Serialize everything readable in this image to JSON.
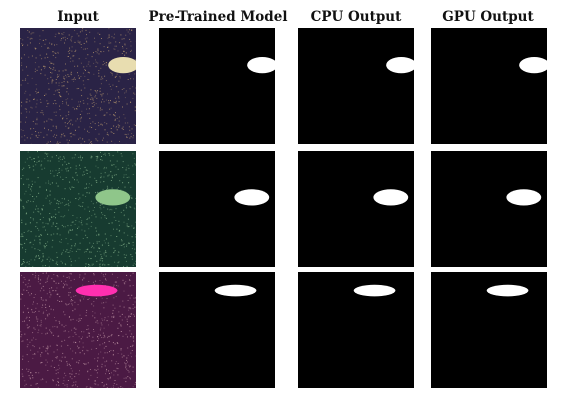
{
  "columns": [
    "Input",
    "Pre-Trained Model",
    "CPU Output",
    "GPU Output"
  ],
  "rows": [
    {
      "input_background": "#2a2346",
      "noise_color": "#b99a6e",
      "blob_color": "#e8ddb0",
      "blob_cx": 0.89,
      "blob_cy": 0.32,
      "blob_rx": 0.13,
      "blob_ry": 0.07
    },
    {
      "input_background": "#173b30",
      "noise_color": "#8bb890",
      "blob_color": "#8fc68a",
      "blob_cx": 0.8,
      "blob_cy": 0.4,
      "blob_rx": 0.15,
      "blob_ry": 0.07
    },
    {
      "input_background": "#4b1a44",
      "noise_color": "#c49aa8",
      "blob_color": "#ff2fb0",
      "blob_cx": 0.66,
      "blob_cy": 0.16,
      "blob_rx": 0.18,
      "blob_ry": 0.05
    }
  ],
  "mask_background": "#000000",
  "mask_foreground": "#ffffff"
}
